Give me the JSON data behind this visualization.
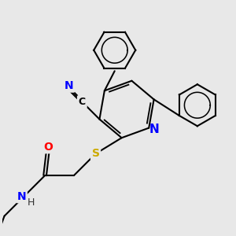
{
  "bg_color": "#e8e8e8",
  "line_color": "#000000",
  "bond_width": 1.5,
  "font_size": 9,
  "atom_colors": {
    "N": "#0000ff",
    "O": "#ff0000",
    "S": "#ccaa00",
    "C": "#000000",
    "H": "#333333"
  }
}
